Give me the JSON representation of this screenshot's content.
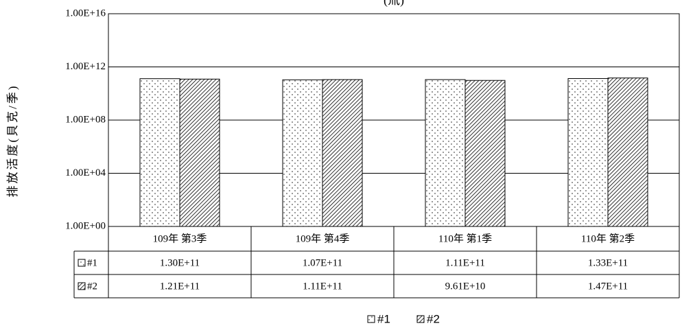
{
  "chart_data": {
    "type": "bar",
    "title": "(氚)",
    "y_label": "排放活度(貝克/季)",
    "categories": [
      "109年 第3季",
      "109年 第4季",
      "110年 第1季",
      "110年 第2季"
    ],
    "series": [
      {
        "name": "#1",
        "color": "#ffffff",
        "pattern": "dots",
        "values": [
          130000000000,
          107000000000,
          111000000000,
          133000000000
        ],
        "value_labels": [
          "1.30E+11",
          "1.07E+11",
          "1.11E+11",
          "1.33E+11"
        ]
      },
      {
        "name": "#2",
        "color": "#ffffff",
        "pattern": "hatch",
        "values": [
          121000000000,
          111000000000,
          96100000000,
          147000000000
        ],
        "value_labels": [
          "1.21E+11",
          "1.11E+11",
          "9.61E+10",
          "1.47E+11"
        ]
      }
    ],
    "ylog": true,
    "ylim": [
      1,
      10000000000000000
    ],
    "yticks": [
      {
        "value": 1,
        "label": "1.00E+00"
      },
      {
        "value": 10000,
        "label": "1.00E+04"
      },
      {
        "value": 100000000,
        "label": "1.00E+08"
      },
      {
        "value": 1000000000000,
        "label": "1.00E+12"
      },
      {
        "value": 10000000000000000,
        "label": "1.00E+16"
      }
    ],
    "grid": true,
    "data_table": true,
    "legend": "bottom"
  }
}
